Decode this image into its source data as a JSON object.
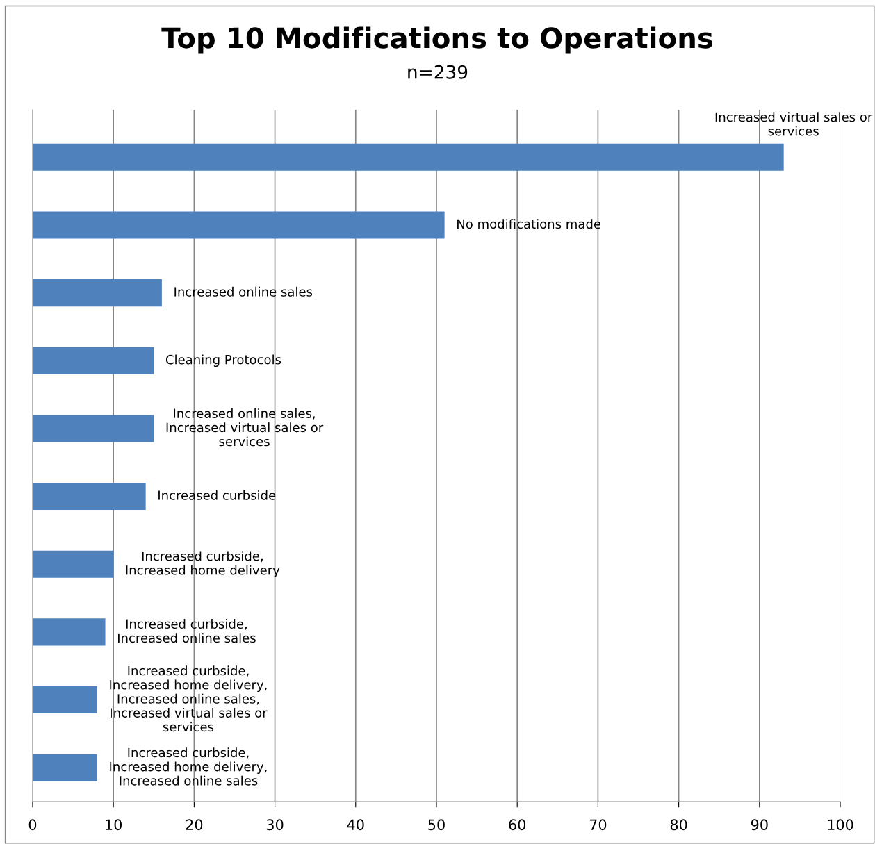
{
  "chart_data": {
    "type": "bar",
    "orientation": "horizontal",
    "title": "Top 10 Modifications to Operations",
    "subtitle": "n=239",
    "categories": [
      "Increased virtual sales or\nservices",
      "No modifications made",
      "Increased online sales",
      "Cleaning Protocols",
      "Increased online sales,\nIncreased virtual sales or\nservices",
      "Increased curbside",
      "Increased curbside,\nIncreased home delivery",
      "Increased curbside,\nIncreased online sales",
      "Increased curbside,\nIncreased home delivery,\nIncreased online sales,\nIncreased virtual sales or\nservices",
      "Increased curbside,\nIncreased home delivery,\nIncreased online sales"
    ],
    "values": [
      93,
      51,
      16,
      15,
      15,
      14,
      10,
      9,
      8,
      8
    ],
    "color": "#4f81bd",
    "xlim": [
      0,
      100
    ],
    "xticks": [
      0,
      10,
      20,
      30,
      40,
      50,
      60,
      70,
      80,
      90,
      100
    ],
    "grid": "x",
    "tick_labels": "x",
    "legend": false
  }
}
